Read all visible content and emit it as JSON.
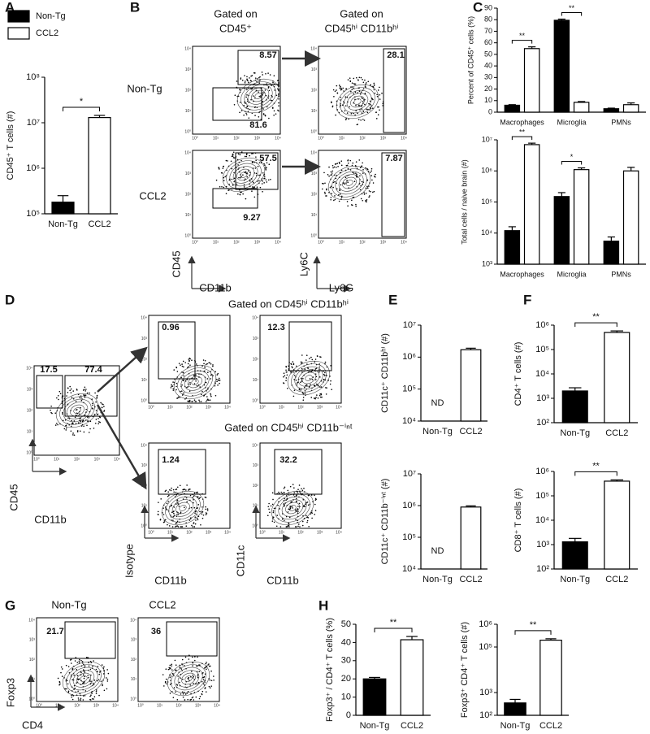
{
  "chart_data": [
    {
      "type": "bar",
      "panel": "A",
      "ylabel": "CD45⁺ T cells (#)",
      "categories": [
        "Non-Tg",
        "CCL2"
      ],
      "values": [
        180000,
        13000000
      ],
      "errors": [
        70000,
        1500000
      ],
      "colors": [
        "#000000",
        "#ffffff"
      ],
      "log": true,
      "ylim": [
        100000,
        100000000
      ],
      "yticks": [
        {
          "value": 100000,
          "label": "10⁵"
        },
        {
          "value": 1000000,
          "label": "10⁶"
        },
        {
          "value": 10000000,
          "label": "10⁷"
        },
        {
          "value": 100000000,
          "label": "10⁸"
        }
      ],
      "significance": "*",
      "legend": [
        {
          "name": "Non-Tg",
          "color": "#000000"
        },
        {
          "name": "CCL2",
          "color": "#ffffff"
        }
      ]
    },
    {
      "type": "flow",
      "panel": "B",
      "headers": [
        [
          "Gated on",
          "CD45⁺"
        ],
        [
          "Gated on",
          "CD45ʰⁱ CD11bʰⁱ"
        ]
      ],
      "row_labels": [
        "Non-Tg",
        "CCL2"
      ],
      "axis_labels": [
        "CD45",
        "CD11b",
        "Ly6C",
        "Ly6G"
      ],
      "ticks": [
        "10⁰",
        "10¹",
        "10²",
        "10³",
        "10⁴"
      ],
      "gates": [
        [
          8.57,
          81.6
        ],
        [
          28.1
        ],
        [
          57.5,
          9.27
        ],
        [
          7.87
        ]
      ]
    },
    {
      "type": "bar",
      "panel": "C",
      "ylabel": "Percent of CD45⁺ cells (%)",
      "categories": [
        "Macrophages",
        "Microglia",
        "PMNs"
      ],
      "series": [
        {
          "color": "#000000",
          "values": [
            6,
            79.5,
            3
          ],
          "errors": [
            0.5,
            1,
            0.5
          ]
        },
        {
          "color": "#ffffff",
          "values": [
            55,
            8.5,
            6.5
          ],
          "errors": [
            1.5,
            0.7,
            1.5
          ]
        }
      ],
      "log": false,
      "ylim": [
        0,
        90
      ],
      "yticks": [
        0,
        10,
        20,
        30,
        40,
        50,
        60,
        70,
        80,
        90
      ],
      "significance": [
        "**",
        "**",
        null
      ]
    },
    {
      "type": "bar",
      "ylabel": "Total cells / naive brain (#)",
      "categories": [
        "Macrophages",
        "Microglia",
        "PMNs"
      ],
      "series": [
        {
          "color": "#000000",
          "values": [
            12000,
            150000,
            5500
          ],
          "errors": [
            4000,
            50000,
            2000
          ]
        },
        {
          "color": "#ffffff",
          "values": [
            7000000,
            1100000,
            1000000
          ],
          "errors": [
            800000,
            150000,
            300000
          ]
        }
      ],
      "log": true,
      "ylim": [
        1000,
        10000000
      ],
      "yticks": [
        {
          "value": 1000,
          "label": "10³"
        },
        {
          "value": 10000,
          "label": "10⁴"
        },
        {
          "value": 100000,
          "label": "10⁵"
        },
        {
          "value": 1000000,
          "label": "10⁶"
        },
        {
          "value": 10000000,
          "label": "10⁷"
        }
      ],
      "significance": [
        "**",
        "*",
        null
      ]
    },
    {
      "type": "flow",
      "panel": "D",
      "headers": [
        [
          "Gated on CD45ʰⁱ CD11bʰⁱ"
        ],
        [
          "Gated on CD45ʰⁱ CD11b⁻ⁱⁿᵗ"
        ]
      ],
      "axis_labels": [
        "CD45",
        "CD11b",
        "Isotype",
        "CD11b",
        "CD11c",
        "CD11b"
      ],
      "ticks": [
        "10⁰",
        "10¹",
        "10²",
        "10³",
        "10⁴"
      ],
      "gates": [
        [
          17.5,
          77.4
        ],
        [
          0.96
        ],
        [
          12.3
        ],
        [
          1.24
        ],
        [
          32.2
        ]
      ]
    },
    {
      "type": "bar",
      "panel": "E",
      "ylabel": "CD11c⁺ CD11bʰⁱ (#)",
      "categories": [
        "Non-Tg",
        "CCL2"
      ],
      "values": [
        null,
        1700000
      ],
      "errors": [
        null,
        200000
      ],
      "value_labels": [
        "ND",
        null
      ],
      "colors": [
        "#000000",
        "#ffffff"
      ],
      "log": true,
      "ylim": [
        10000,
        10000000
      ],
      "yticks": [
        {
          "value": 10000,
          "label": "10⁴"
        },
        {
          "value": 100000,
          "label": "10⁵"
        },
        {
          "value": 1000000,
          "label": "10⁶"
        },
        {
          "value": 10000000,
          "label": "10⁷"
        }
      ]
    },
    {
      "type": "bar",
      "ylabel": "CD11c⁺ CD11b⁻ⁱⁿᵗ (#)",
      "categories": [
        "Non-Tg",
        "CCL2"
      ],
      "values": [
        null,
        900000
      ],
      "errors": [
        null,
        80000
      ],
      "value_labels": [
        "ND",
        null
      ],
      "colors": [
        "#000000",
        "#ffffff"
      ],
      "log": true,
      "ylim": [
        10000,
        10000000
      ],
      "yticks": [
        {
          "value": 10000,
          "label": "10⁴"
        },
        {
          "value": 100000,
          "label": "10⁵"
        },
        {
          "value": 1000000,
          "label": "10⁶"
        },
        {
          "value": 10000000,
          "label": "10⁷"
        }
      ]
    },
    {
      "type": "bar",
      "panel": "F",
      "ylabel": "CD4⁺ T cells (#)",
      "categories": [
        "Non-Tg",
        "CCL2"
      ],
      "values": [
        2000,
        500000
      ],
      "errors": [
        700,
        80000
      ],
      "colors": [
        "#000000",
        "#ffffff"
      ],
      "log": true,
      "ylim": [
        100,
        1000000
      ],
      "yticks": [
        {
          "value": 100,
          "label": "10²"
        },
        {
          "value": 1000,
          "label": "10³"
        },
        {
          "value": 10000,
          "label": "10⁴"
        },
        {
          "value": 100000,
          "label": "10⁵"
        },
        {
          "value": 1000000,
          "label": "10⁶"
        }
      ],
      "significance": "**"
    },
    {
      "type": "bar",
      "ylabel": "CD8⁺ T cells (#)",
      "categories": [
        "Non-Tg",
        "CCL2"
      ],
      "values": [
        1300,
        400000
      ],
      "errors": [
        500,
        50000
      ],
      "colors": [
        "#000000",
        "#ffffff"
      ],
      "log": true,
      "ylim": [
        100,
        1000000
      ],
      "yticks": [
        {
          "value": 100,
          "label": "10²"
        },
        {
          "value": 1000,
          "label": "10³"
        },
        {
          "value": 10000,
          "label": "10⁴"
        },
        {
          "value": 100000,
          "label": "10⁵"
        },
        {
          "value": 1000000,
          "label": "10⁶"
        }
      ],
      "significance": "**"
    },
    {
      "type": "flow",
      "panel": "G",
      "headers": [
        [
          "Non-Tg"
        ],
        [
          "CCL2"
        ]
      ],
      "axis_labels": [
        "Foxp3",
        "CD4"
      ],
      "ticks": [
        "10⁰",
        "10¹",
        "10²",
        "10³",
        "10⁴"
      ],
      "gates": [
        [
          21.7
        ],
        [
          36
        ]
      ]
    },
    {
      "type": "bar",
      "panel": "H",
      "ylabel": "Foxp3⁺ / CD4⁺ T cells (%)",
      "categories": [
        "Non-Tg",
        "CCL2"
      ],
      "values": [
        20,
        41.5
      ],
      "errors": [
        0.8,
        1.8
      ],
      "colors": [
        "#000000",
        "#ffffff"
      ],
      "log": false,
      "ylim": [
        0,
        50
      ],
      "yticks": [
        0,
        10,
        20,
        30,
        40,
        50
      ],
      "significance": "**"
    },
    {
      "type": "bar",
      "ylabel": "Foxp3⁺ CD4⁺ T cells (#)",
      "categories": [
        "Non-Tg",
        "CCL2"
      ],
      "values": [
        350,
        200000
      ],
      "errors": [
        150,
        30000
      ],
      "colors": [
        "#000000",
        "#ffffff"
      ],
      "log": true,
      "ylim": [
        100,
        1000000
      ],
      "yticks": [
        {
          "value": 100,
          "label": "10²"
        },
        {
          "value": 1000,
          "label": "10³"
        },
        {
          "value": 100000,
          "label": "10⁵"
        },
        {
          "value": 1000000,
          "label": "10⁶"
        }
      ],
      "significance": "**"
    }
  ]
}
